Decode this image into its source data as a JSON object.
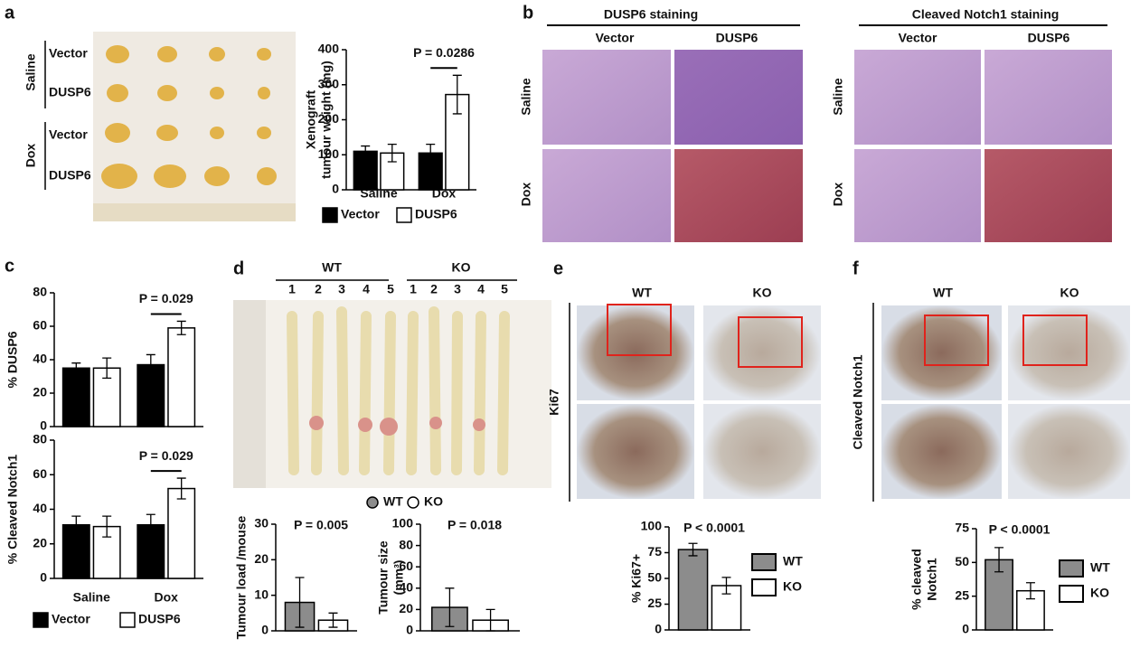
{
  "panels": {
    "letters": [
      "a",
      "b",
      "c",
      "d",
      "e",
      "f"
    ],
    "a": {
      "groups": [
        "Saline",
        "Dox"
      ],
      "rows": [
        "Vector",
        "DUSP6",
        "Vector",
        "DUSP6"
      ]
    },
    "b": {
      "titles": [
        "DUSP6 staining",
        "Cleaved Notch1 staining"
      ],
      "columns": [
        "Vector",
        "DUSP6",
        "Vector",
        "DUSP6"
      ],
      "rows": [
        "Saline",
        "Dox",
        "Saline",
        "Dox"
      ]
    },
    "d": {
      "groups": [
        "WT",
        "KO"
      ],
      "mice": [
        "1",
        "2",
        "3",
        "4",
        "5",
        "1",
        "2",
        "3",
        "4",
        "5"
      ]
    },
    "e": {
      "columns": [
        "WT",
        "KO"
      ],
      "stain": "Ki67"
    },
    "f": {
      "columns": [
        "WT",
        "KO"
      ],
      "stain": "Cleaved Notch1"
    }
  },
  "chart_data": [
    {
      "type": "bar",
      "y_label": [
        "Xenograft",
        "tumour weight (mg)"
      ],
      "annotation": "P = 0.0286",
      "categories": [
        "Saline",
        "Dox"
      ],
      "series": [
        {
          "name": "Vector",
          "color": "#000000",
          "values": [
            110,
            105
          ],
          "errors": [
            15,
            25
          ]
        },
        {
          "name": "DUSP6",
          "color": "#ffffff",
          "values": [
            105,
            272
          ],
          "errors": [
            25,
            55
          ]
        }
      ],
      "ylim": [
        0,
        400
      ],
      "yticks": [
        0,
        100,
        200,
        300,
        400
      ]
    },
    {
      "type": "bar",
      "y_label": [
        "% DUSP6"
      ],
      "annotation": "P = 0.029",
      "categories": [
        null,
        null
      ],
      "series": [
        {
          "color": "#000000",
          "values": [
            35,
            37
          ],
          "errors": [
            3,
            6
          ]
        },
        {
          "color": "#ffffff",
          "values": [
            35,
            59
          ],
          "errors": [
            6,
            4
          ]
        }
      ],
      "ylim": [
        0,
        80
      ],
      "yticks": [
        0,
        20,
        40,
        60,
        80
      ]
    },
    {
      "type": "bar",
      "y_label": [
        "% Cleaved Notch1"
      ],
      "annotation": "P = 0.029",
      "categories": [
        "Saline",
        "Dox"
      ],
      "series": [
        {
          "name": "Vector",
          "color": "#000000",
          "values": [
            31,
            31
          ],
          "errors": [
            5,
            6
          ]
        },
        {
          "name": "DUSP6",
          "color": "#ffffff",
          "values": [
            30,
            52
          ],
          "errors": [
            6,
            6
          ]
        }
      ],
      "ylim": [
        0,
        80
      ],
      "yticks": [
        0,
        20,
        40,
        60,
        80
      ]
    },
    {
      "type": "bar",
      "y_label": [
        "Tumour load /mouse"
      ],
      "annotation": "P = 0.005",
      "categories": [
        null
      ],
      "series": [
        {
          "name": "WT",
          "color": "#8c8c8c",
          "values": [
            8
          ],
          "errors": [
            7
          ]
        },
        {
          "name": "KO",
          "color": "#ffffff",
          "values": [
            3
          ],
          "errors": [
            2
          ]
        }
      ],
      "ylim": [
        0,
        30
      ],
      "yticks": [
        0,
        10,
        20,
        30
      ]
    },
    {
      "type": "bar",
      "y_label": [
        "Tumour size",
        "(mm³)"
      ],
      "annotation": "P = 0.018",
      "categories": [
        null
      ],
      "series": [
        {
          "color": "#8c8c8c",
          "values": [
            22
          ],
          "errors": [
            18
          ]
        },
        {
          "color": "#ffffff",
          "values": [
            10
          ],
          "errors": [
            10
          ]
        }
      ],
      "ylim": [
        0,
        100
      ],
      "yticks": [
        0,
        20,
        40,
        60,
        80,
        100
      ]
    },
    {
      "type": "bar",
      "y_label": [
        "% Ki67+"
      ],
      "annotation": "P < 0.0001",
      "categories": [
        null
      ],
      "series": [
        {
          "name": "WT",
          "color": "#8c8c8c",
          "values": [
            78
          ],
          "errors": [
            6
          ]
        },
        {
          "name": "KO",
          "color": "#ffffff",
          "values": [
            43
          ],
          "errors": [
            8
          ]
        }
      ],
      "ylim": [
        0,
        100
      ],
      "yticks": [
        0,
        25,
        50,
        75,
        100
      ]
    },
    {
      "type": "bar",
      "y_label": [
        "% cleaved",
        "Notch1"
      ],
      "annotation": "P < 0.0001",
      "categories": [
        null
      ],
      "series": [
        {
          "name": "WT",
          "color": "#8c8c8c",
          "values": [
            52
          ],
          "errors": [
            9
          ]
        },
        {
          "name": "KO",
          "color": "#ffffff",
          "values": [
            29
          ],
          "errors": [
            6
          ]
        }
      ],
      "ylim": [
        0,
        75
      ],
      "yticks": [
        0,
        25,
        50,
        75
      ]
    }
  ]
}
